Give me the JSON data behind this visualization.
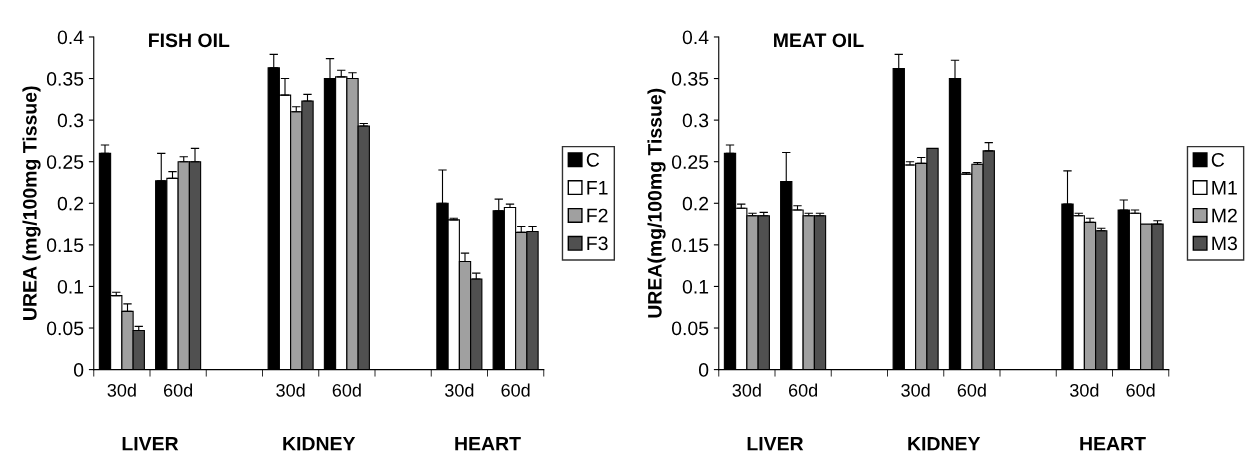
{
  "chart_data": [
    {
      "type": "bar",
      "title": "FISH OIL",
      "ylabel": "UREA (mg/100mg Tissue)",
      "categories": [
        "30d",
        "60d",
        null,
        "30d",
        "60d",
        null,
        "30d",
        "60d"
      ],
      "annotations": [
        "LIVER",
        "KIDNEY",
        "HEART"
      ],
      "ylim": [
        0,
        0.4
      ],
      "yticks": [
        0,
        0.05,
        0.1,
        0.15,
        0.2,
        0.25,
        0.3,
        0.35,
        0.4
      ],
      "grid": false,
      "legend": "right",
      "series": [
        {
          "name": "C",
          "color": "#000000",
          "values": [
            0.26,
            0.227,
            null,
            0.363,
            0.35,
            null,
            0.2,
            0.191
          ],
          "errors": [
            [
              0.26,
              0.27
            ],
            [
              0.227,
              0.26
            ],
            null,
            [
              0.363,
              0.379
            ],
            [
              0.35,
              0.374
            ],
            null,
            [
              0.2,
              0.24
            ],
            [
              0.191,
              0.205
            ]
          ]
        },
        {
          "name": "F1",
          "color": "#ffffff",
          "values": [
            0.089,
            0.23,
            null,
            0.33,
            0.352,
            null,
            0.18,
            0.195
          ],
          "errors": [
            [
              0.089,
              0.093
            ],
            [
              0.23,
              0.238
            ],
            null,
            [
              0.33,
              0.35
            ],
            [
              0.352,
              0.36
            ],
            null,
            [
              0.18,
              0.182
            ],
            [
              0.195,
              0.199
            ]
          ]
        },
        {
          "name": "F2",
          "color": "#a0a0a0",
          "values": [
            0.07,
            0.25,
            null,
            0.31,
            0.35,
            null,
            0.13,
            0.165
          ],
          "errors": [
            [
              0.07,
              0.079
            ],
            [
              0.25,
              0.256
            ],
            null,
            [
              0.31,
              0.316
            ],
            [
              0.35,
              0.357
            ],
            null,
            [
              0.13,
              0.14
            ],
            [
              0.165,
              0.172
            ]
          ]
        },
        {
          "name": "F3",
          "color": "#505050",
          "values": [
            0.047,
            0.25,
            null,
            0.323,
            0.293,
            null,
            0.109,
            0.166
          ],
          "errors": [
            [
              0.047,
              0.052
            ],
            [
              0.25,
              0.266
            ],
            null,
            [
              0.323,
              0.331
            ],
            [
              0.293,
              0.296
            ],
            null,
            [
              0.109,
              0.116
            ],
            [
              0.166,
              0.172
            ]
          ]
        }
      ]
    },
    {
      "type": "bar",
      "title": "MEAT OIL",
      "ylabel": "UREA(mg/100mg Tissue)",
      "categories": [
        "30d",
        "60d",
        null,
        "30d",
        "60d",
        null,
        "30d",
        "60d"
      ],
      "annotations": [
        "LIVER",
        "KIDNEY",
        "HEART"
      ],
      "ylim": [
        0,
        0.4
      ],
      "yticks": [
        0,
        0.05,
        0.1,
        0.15,
        0.2,
        0.25,
        0.3,
        0.35,
        0.4
      ],
      "grid": false,
      "legend": "right",
      "series": [
        {
          "name": "C",
          "color": "#000000",
          "values": [
            0.26,
            0.226,
            null,
            0.362,
            0.35,
            null,
            0.199,
            0.192
          ],
          "errors": [
            [
              0.26,
              0.27
            ],
            [
              0.226,
              0.261
            ],
            null,
            [
              0.362,
              0.379
            ],
            [
              0.35,
              0.372
            ],
            null,
            [
              0.199,
              0.239
            ],
            [
              0.192,
              0.204
            ]
          ]
        },
        {
          "name": "M1",
          "color": "#ffffff",
          "values": [
            0.194,
            0.192,
            null,
            0.246,
            0.235,
            null,
            0.185,
            0.188
          ],
          "errors": [
            [
              0.194,
              0.199
            ],
            [
              0.192,
              0.197
            ],
            null,
            [
              0.246,
              0.25
            ],
            [
              0.235,
              0.237
            ],
            null,
            [
              0.185,
              0.188
            ],
            [
              0.188,
              0.192
            ]
          ]
        },
        {
          "name": "M2",
          "color": "#a0a0a0",
          "values": [
            0.185,
            0.185,
            null,
            0.248,
            0.247,
            null,
            0.177,
            0.175
          ],
          "errors": [
            [
              0.185,
              0.188
            ],
            [
              0.185,
              0.188
            ],
            null,
            [
              0.248,
              0.255
            ],
            [
              0.247,
              0.249
            ],
            null,
            [
              0.177,
              0.182
            ],
            null
          ]
        },
        {
          "name": "M3",
          "color": "#505050",
          "values": [
            0.185,
            0.185,
            null,
            0.266,
            0.263,
            null,
            0.167,
            0.175
          ],
          "errors": [
            [
              0.185,
              0.189
            ],
            [
              0.185,
              0.188
            ],
            null,
            null,
            [
              0.263,
              0.273
            ],
            null,
            [
              0.167,
              0.17
            ],
            [
              0.175,
              0.179
            ]
          ]
        }
      ]
    }
  ]
}
